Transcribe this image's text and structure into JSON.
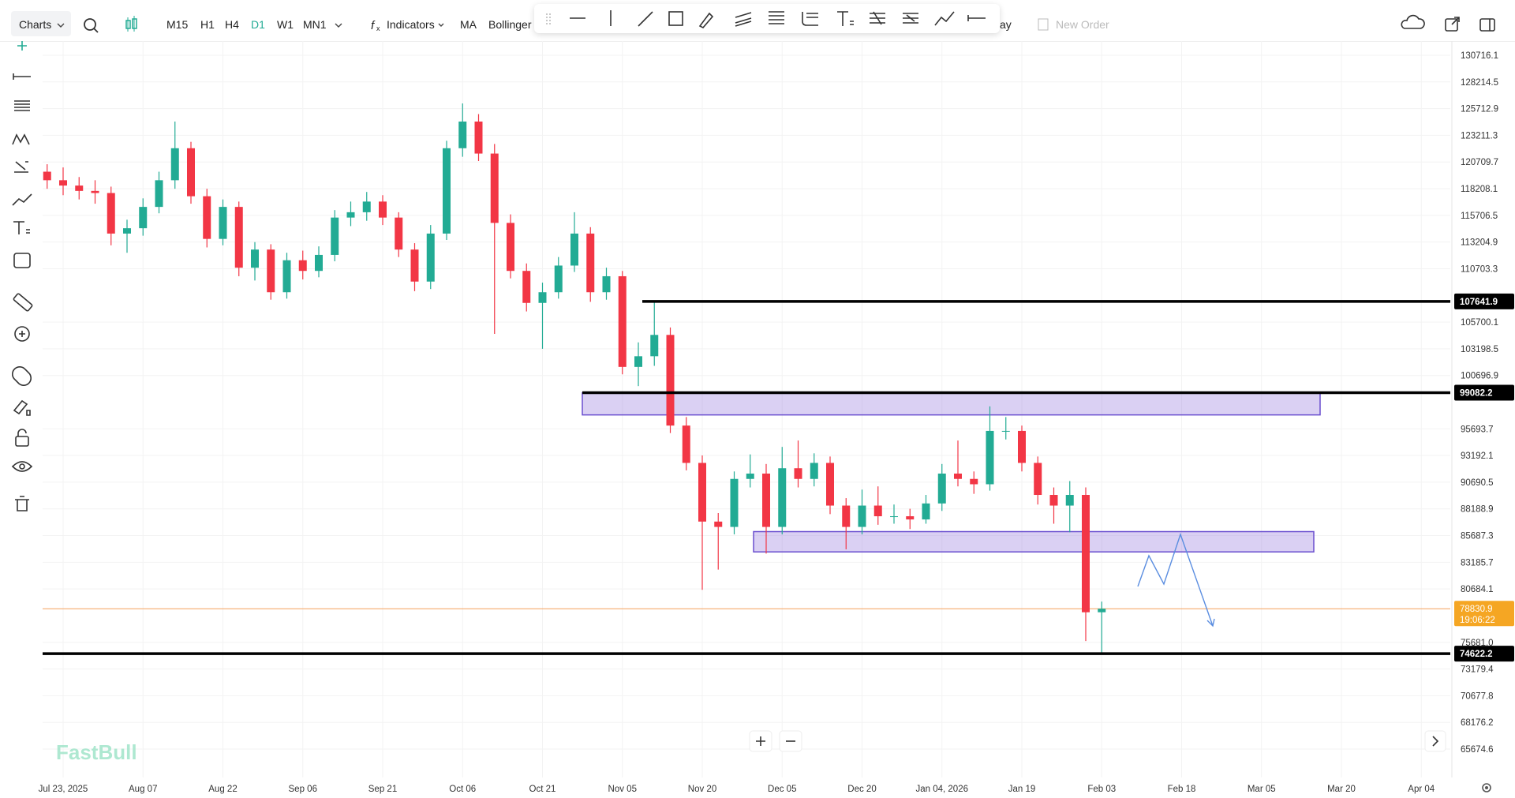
{
  "toolbar": {
    "symbol_menu": "Charts",
    "timeframes": [
      "M15",
      "H1",
      "H4",
      "D1",
      "W1",
      "MN1"
    ],
    "active_timeframe": "D1",
    "indicators": "Indicators",
    "ma": "MA",
    "bollinger": "Bollinger",
    "replay_fragment": "ay",
    "new_order": "New Order"
  },
  "chart": {
    "watermark": "FastBull",
    "ylim": [
      63011,
      132048
    ],
    "yticks": [
      130716.1,
      128214.5,
      125712.9,
      123211.3,
      120709.7,
      118208.1,
      115706.5,
      113204.9,
      110703.3,
      105700.1,
      103198.5,
      100696.9,
      95693.7,
      93192.1,
      90690.5,
      88188.9,
      85687.3,
      83185.7,
      80684.1,
      {
        "value": 75681.0,
        "label": "75681.0"
      },
      73179.4,
      70677.8,
      68176.2,
      65674.6
    ],
    "xlabels": [
      "Jul 23, 2025",
      "Aug 07",
      "Aug 22",
      "Sep 06",
      "Sep 21",
      "Oct 06",
      "Oct 21",
      "Nov 05",
      "Nov 20",
      "Dec 05",
      "Dec 20",
      "Jan 04, 2026",
      "Jan 19",
      "Feb 03",
      "Feb 18",
      "Mar 05",
      "Mar 20",
      "Apr 04"
    ],
    "up_color": "#22ab94",
    "down_color": "#f23645",
    "candles": [
      [
        119800,
        120500,
        118200,
        119000
      ],
      [
        119000,
        120200,
        117600,
        118500
      ],
      [
        118500,
        119300,
        117200,
        118000
      ],
      [
        118000,
        119000,
        116800,
        117800
      ],
      [
        117800,
        118400,
        112900,
        114000
      ],
      [
        114000,
        115300,
        112200,
        114500
      ],
      [
        114500,
        117300,
        113800,
        116500
      ],
      [
        116500,
        119800,
        115900,
        119000
      ],
      [
        119000,
        124500,
        118200,
        122000
      ],
      [
        122000,
        122600,
        116800,
        117500
      ],
      [
        117500,
        118200,
        112700,
        113500
      ],
      [
        113500,
        117200,
        112900,
        116500
      ],
      [
        116500,
        117000,
        110000,
        110800
      ],
      [
        110800,
        113200,
        109600,
        112500
      ],
      [
        112500,
        113000,
        107800,
        108500
      ],
      [
        108500,
        112200,
        107900,
        111500
      ],
      [
        111500,
        112400,
        109700,
        110500
      ],
      [
        110500,
        112800,
        109900,
        112000
      ],
      [
        112000,
        116200,
        111400,
        115500
      ],
      [
        115500,
        117000,
        114700,
        116000
      ],
      [
        116000,
        117900,
        115200,
        117000
      ],
      [
        117000,
        117600,
        114800,
        115500
      ],
      [
        115500,
        116000,
        111800,
        112500
      ],
      [
        112500,
        113100,
        108600,
        109500
      ],
      [
        109500,
        114800,
        108800,
        114000
      ],
      [
        114000,
        122700,
        113400,
        122000
      ],
      [
        122000,
        126200,
        121200,
        124500
      ],
      [
        124500,
        125200,
        120800,
        121500
      ],
      [
        121500,
        122400,
        104600,
        115000
      ],
      [
        115000,
        115800,
        109800,
        110500
      ],
      [
        110500,
        111200,
        106700,
        107500
      ],
      [
        107500,
        109400,
        103200,
        108500
      ],
      [
        108500,
        111800,
        107900,
        111000
      ],
      [
        111000,
        116000,
        110400,
        114000
      ],
      [
        114000,
        114600,
        107600,
        108500
      ],
      [
        108500,
        110800,
        107800,
        110000
      ],
      [
        110000,
        110500,
        100800,
        101500
      ],
      [
        101500,
        103800,
        99700,
        102500
      ],
      [
        102500,
        107600,
        101600,
        104500
      ],
      [
        104500,
        105200,
        95300,
        96000
      ],
      [
        96000,
        96800,
        91800,
        92500
      ],
      [
        92500,
        93200,
        80600,
        87000
      ],
      [
        87000,
        87800,
        82500,
        86500
      ],
      [
        86500,
        91700,
        85800,
        91000
      ],
      [
        91000,
        93300,
        90200,
        91500
      ],
      [
        91500,
        92400,
        84000,
        86500
      ],
      [
        86500,
        94000,
        85800,
        92000
      ],
      [
        92000,
        94600,
        90200,
        91000
      ],
      [
        91000,
        93400,
        90300,
        92500
      ],
      [
        92500,
        93100,
        87700,
        88500
      ],
      [
        88500,
        89200,
        84400,
        86500
      ],
      [
        86500,
        90000,
        85800,
        88500
      ],
      [
        88500,
        90300,
        86700,
        87500
      ],
      [
        87500,
        88600,
        86800,
        87500
      ],
      [
        87500,
        88200,
        86300,
        87200
      ],
      [
        87200,
        89500,
        86800,
        88700
      ],
      [
        88700,
        92400,
        88000,
        91500
      ],
      [
        91500,
        94600,
        90300,
        91000
      ],
      [
        91000,
        91700,
        89600,
        90500
      ],
      [
        90500,
        97800,
        89900,
        95500
      ],
      [
        95500,
        96800,
        94700,
        95500
      ],
      [
        95500,
        96000,
        91700,
        92500
      ],
      [
        92500,
        93100,
        88600,
        89500
      ],
      [
        89500,
        90200,
        86800,
        88500
      ],
      [
        88500,
        90800,
        86000,
        89500
      ],
      [
        89500,
        90200,
        75800,
        78500
      ],
      [
        78500,
        79500,
        74700,
        78830.9
      ]
    ],
    "levels": [
      107641.9,
      99082.2,
      74622.2
    ],
    "zones": [
      {
        "top": 99082.2,
        "bottom": 97000
      },
      {
        "top": 86060,
        "bottom": 84158
      }
    ],
    "last_price": 78830.9,
    "countdown": "19:06:22"
  }
}
